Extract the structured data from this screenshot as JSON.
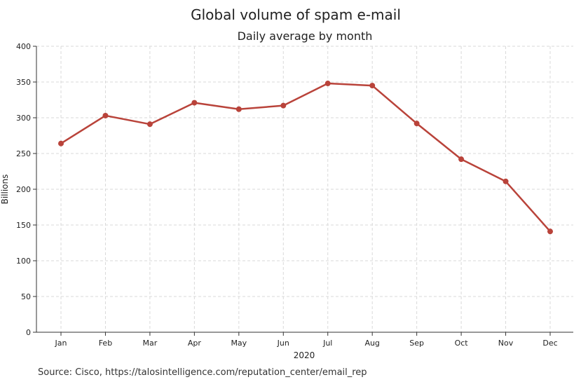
{
  "chart_data": {
    "type": "line",
    "title": "Global volume of spam e-mail",
    "subtitle": "Daily average by month",
    "xlabel": "2020",
    "ylabel": "Billions",
    "categories": [
      "Jan",
      "Feb",
      "Mar",
      "Apr",
      "May",
      "Jun",
      "Jul",
      "Aug",
      "Sep",
      "Oct",
      "Nov",
      "Dec"
    ],
    "series": [
      {
        "values": [
          264,
          303,
          291,
          321,
          312,
          317,
          348,
          345,
          292,
          242,
          211,
          141
        ]
      }
    ],
    "ylim": [
      0,
      400
    ],
    "yticks": [
      0,
      50,
      100,
      150,
      200,
      250,
      300,
      350,
      400
    ],
    "grid": true,
    "line_color": "#b9433a",
    "source": "Source: Cisco, https://talosintelligence.com/reputation_center/email_rep"
  }
}
